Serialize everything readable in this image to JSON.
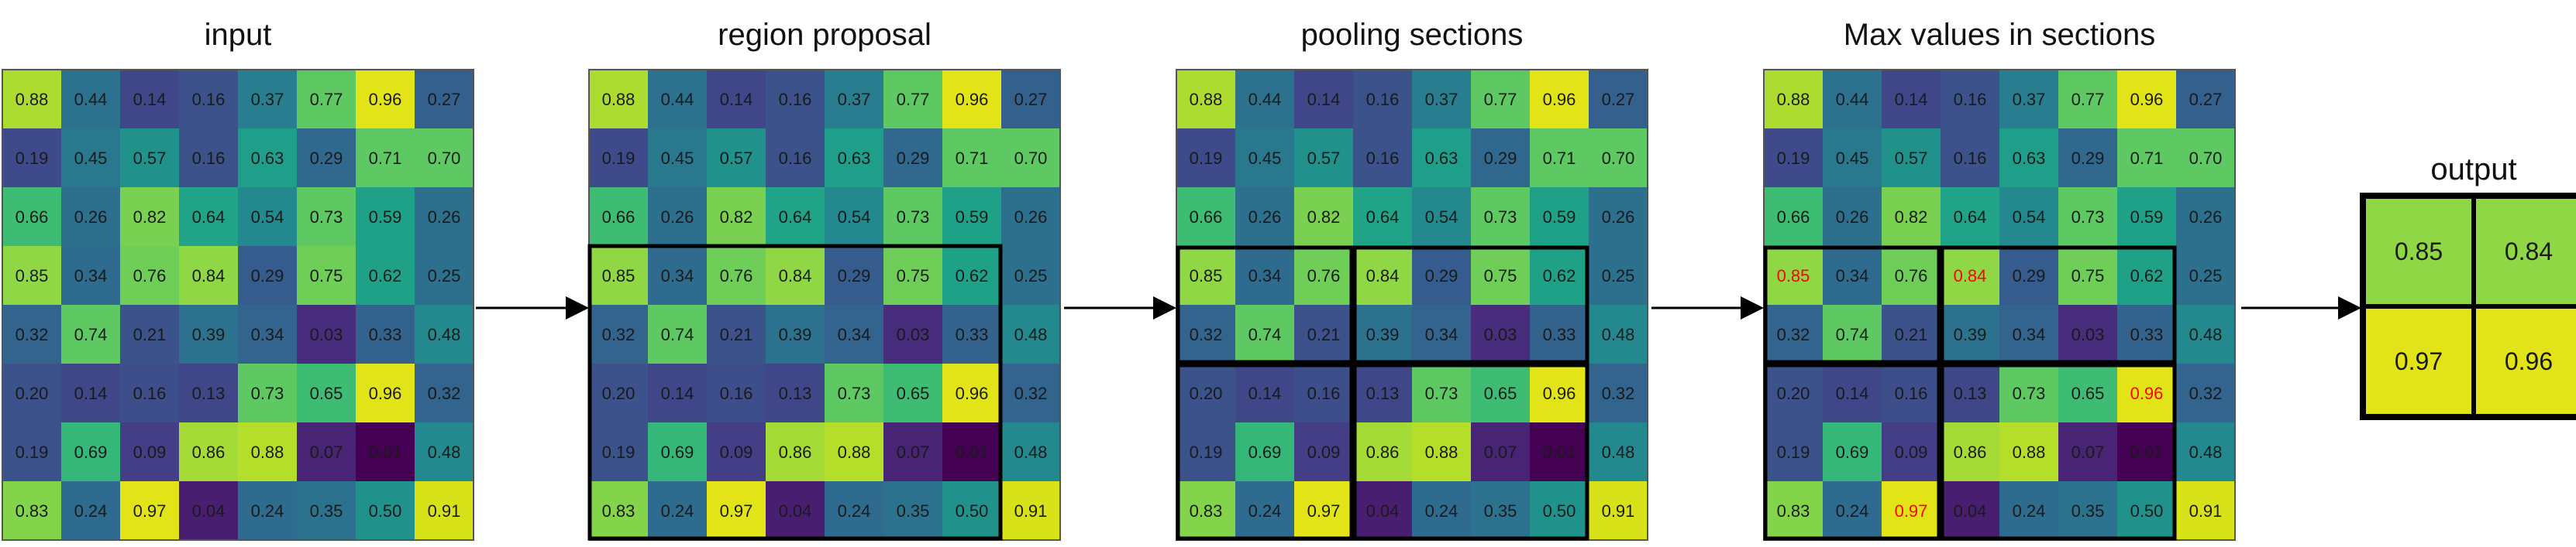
{
  "panels": [
    {
      "title": "input",
      "mode": "plain"
    },
    {
      "title": "region proposal",
      "mode": "region"
    },
    {
      "title": "pooling sections",
      "mode": "sections"
    },
    {
      "title": "Max values in sections",
      "mode": "max"
    }
  ],
  "output": {
    "title": "output",
    "labels": [
      [
        "0.85",
        "0.84"
      ],
      [
        "0.97",
        "0.96"
      ]
    ],
    "colors": [
      [
        "#8fd744",
        "#8fd744"
      ],
      [
        "#e2e418",
        "#e2e418"
      ]
    ]
  },
  "matrix": {
    "labels": [
      [
        "0.88",
        "0.44",
        "0.14",
        "0.16",
        "0.37",
        "0.77",
        "0.96",
        "0.27"
      ],
      [
        "0.19",
        "0.45",
        "0.57",
        "0.16",
        "0.63",
        "0.29",
        "0.71",
        "0.70"
      ],
      [
        "0.66",
        "0.26",
        "0.82",
        "0.64",
        "0.54",
        "0.73",
        "0.59",
        "0.26"
      ],
      [
        "0.85",
        "0.34",
        "0.76",
        "0.84",
        "0.29",
        "0.75",
        "0.62",
        "0.25"
      ],
      [
        "0.32",
        "0.74",
        "0.21",
        "0.39",
        "0.34",
        "0.03",
        "0.33",
        "0.48"
      ],
      [
        "0.20",
        "0.14",
        "0.16",
        "0.13",
        "0.73",
        "0.65",
        "0.96",
        "0.32"
      ],
      [
        "0.19",
        "0.69",
        "0.09",
        "0.86",
        "0.88",
        "0.07",
        "0.01",
        "0.48"
      ],
      [
        "0.83",
        "0.24",
        "0.97",
        "0.04",
        "0.24",
        "0.35",
        "0.50",
        "0.91"
      ]
    ],
    "colors": [
      [
        "#addc30",
        "#2c728e",
        "#3f4788",
        "#3b528b",
        "#287d8e",
        "#5ec962",
        "#e2e418",
        "#34608d"
      ],
      [
        "#3e4a89",
        "#2a788e",
        "#21918c",
        "#3b528b",
        "#1f9e89",
        "#31688e",
        "#5ec962",
        "#5ec962"
      ],
      [
        "#3fbc73",
        "#2d708e",
        "#7ad151",
        "#20a386",
        "#23898e",
        "#5ec962",
        "#1fa187",
        "#2d708e"
      ],
      [
        "#8fd744",
        "#2f6b8e",
        "#6ece58",
        "#8fd744",
        "#365c8d",
        "#6ece58",
        "#1fa187",
        "#2d708e"
      ],
      [
        "#32648e",
        "#5ec962",
        "#3b528b",
        "#2c728e",
        "#32648e",
        "#472d7b",
        "#33638d",
        "#23898e"
      ],
      [
        "#3b528b",
        "#3f4788",
        "#3d4e8a",
        "#3f4788",
        "#5ec962",
        "#3fbc73",
        "#e2e418",
        "#32648e"
      ],
      [
        "#3b528b",
        "#35b779",
        "#433e85",
        "#a5db36",
        "#b5de2b",
        "#482475",
        "#440154",
        "#23898e"
      ],
      [
        "#84d44b",
        "#2f6b8e",
        "#e2e418",
        "#481f70",
        "#2f6b8e",
        "#2c728e",
        "#21918c",
        "#d8e219"
      ]
    ],
    "highlight_color": "#ff0000",
    "max_cells": [
      [
        3,
        0
      ],
      [
        3,
        3
      ],
      [
        7,
        2
      ],
      [
        5,
        6
      ]
    ]
  }
}
